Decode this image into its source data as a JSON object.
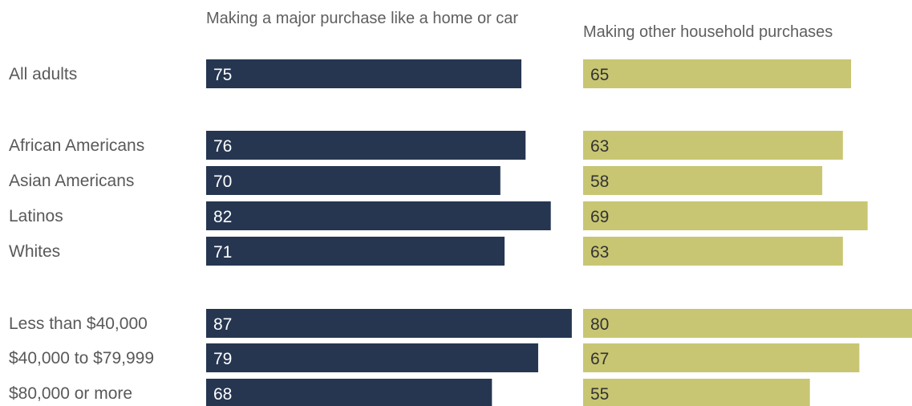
{
  "colors": {
    "major": "#263651",
    "other": "#c8c672",
    "label_text": "#595959",
    "value_text_major": "#ffffff",
    "value_text_other": "#333333"
  },
  "chart_data": {
    "type": "bar",
    "orientation": "horizontal",
    "categories": [
      "All adults",
      "African Americans",
      "Asian Americans",
      "Latinos",
      "Whites",
      "Less than $40,000",
      "$40,000 to $79,999",
      "$80,000 or more"
    ],
    "groups": [
      [
        "All adults"
      ],
      [
        "African Americans",
        "Asian Americans",
        "Latinos",
        "Whites"
      ],
      [
        "Less than $40,000",
        "$40,000 to $79,999",
        "$80,000 or more"
      ]
    ],
    "series": [
      {
        "name": "Making a major purchase like a home or car",
        "values": [
          75,
          76,
          70,
          82,
          71,
          87,
          79,
          68
        ]
      },
      {
        "name": "Making other household purchases",
        "values": [
          65,
          63,
          58,
          69,
          63,
          80,
          67,
          55
        ]
      }
    ],
    "data_labels": true,
    "grid": false,
    "legend": "none"
  }
}
